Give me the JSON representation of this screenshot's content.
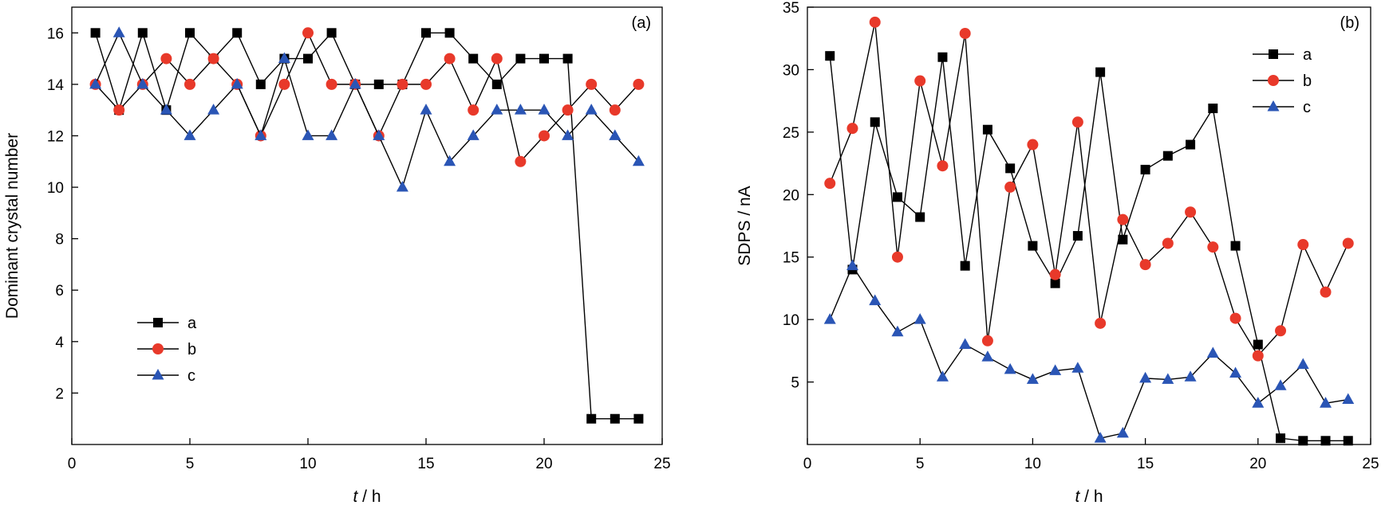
{
  "chart_data": [
    {
      "type": "line",
      "panel_label": "(a)",
      "xlabel_italic": "t",
      "xlabel_rest": " / h",
      "ylabel": "Dominant crystal number",
      "xlim": [
        0,
        25
      ],
      "ylim": [
        0,
        17
      ],
      "xticks": [
        0,
        5,
        10,
        15,
        20,
        25
      ],
      "yticks": [
        2,
        4,
        6,
        8,
        10,
        12,
        14,
        16
      ],
      "legend_position": "bottom-left",
      "x": [
        1,
        2,
        3,
        4,
        5,
        6,
        7,
        8,
        9,
        10,
        11,
        12,
        13,
        14,
        15,
        16,
        17,
        18,
        19,
        20,
        21,
        22,
        23,
        24
      ],
      "series": [
        {
          "name": "a",
          "marker": "square",
          "color": "#000000",
          "values": [
            16,
            13,
            16,
            13,
            16,
            15,
            16,
            14,
            15,
            15,
            16,
            14,
            14,
            14,
            16,
            16,
            15,
            14,
            15,
            15,
            15,
            1,
            1,
            1
          ]
        },
        {
          "name": "b",
          "marker": "circle",
          "color": "#e8392a",
          "values": [
            14,
            13,
            14,
            15,
            14,
            15,
            14,
            12,
            14,
            16,
            14,
            14,
            12,
            14,
            14,
            15,
            13,
            15,
            11,
            12,
            13,
            14,
            13,
            14
          ]
        },
        {
          "name": "c",
          "marker": "triangle",
          "color": "#2a55b5",
          "values": [
            14,
            16,
            14,
            13,
            12,
            13,
            14,
            12,
            15,
            12,
            12,
            14,
            12,
            10,
            13,
            11,
            12,
            13,
            13,
            13,
            12,
            13,
            12,
            11
          ]
        }
      ]
    },
    {
      "type": "line",
      "panel_label": "(b)",
      "xlabel_italic": "t",
      "xlabel_rest": " / h",
      "ylabel": "SDPS / nA",
      "xlim": [
        0,
        25
      ],
      "ylim": [
        0,
        35
      ],
      "xticks": [
        0,
        5,
        10,
        15,
        20,
        25
      ],
      "yticks": [
        5,
        10,
        15,
        20,
        25,
        30,
        35
      ],
      "legend_position": "top-right",
      "x": [
        1,
        2,
        3,
        4,
        5,
        6,
        7,
        8,
        9,
        10,
        11,
        12,
        13,
        14,
        15,
        16,
        17,
        18,
        19,
        20,
        21,
        22,
        23,
        24
      ],
      "series": [
        {
          "name": "a",
          "marker": "square",
          "color": "#000000",
          "values": [
            31.1,
            14.0,
            25.8,
            19.8,
            18.2,
            31.0,
            14.3,
            25.2,
            22.1,
            15.9,
            12.9,
            16.7,
            29.8,
            16.4,
            22.0,
            23.1,
            24.0,
            26.9,
            15.9,
            8.0,
            0.5,
            0.3,
            0.3,
            0.3
          ]
        },
        {
          "name": "b",
          "marker": "circle",
          "color": "#e8392a",
          "values": [
            20.9,
            25.3,
            33.8,
            15.0,
            29.1,
            22.3,
            32.9,
            8.3,
            20.6,
            24.0,
            13.6,
            25.8,
            9.7,
            18.0,
            14.4,
            16.1,
            18.6,
            15.8,
            10.1,
            7.1,
            9.1,
            16.0,
            12.2,
            16.1
          ]
        },
        {
          "name": "c",
          "marker": "triangle",
          "color": "#2a55b5",
          "values": [
            10.0,
            14.3,
            11.5,
            9.0,
            10.0,
            5.4,
            8.0,
            7.0,
            6.0,
            5.2,
            5.9,
            6.1,
            0.5,
            0.9,
            5.3,
            5.2,
            5.4,
            7.3,
            5.7,
            3.3,
            4.7,
            6.4,
            3.3,
            3.6
          ]
        }
      ]
    }
  ]
}
